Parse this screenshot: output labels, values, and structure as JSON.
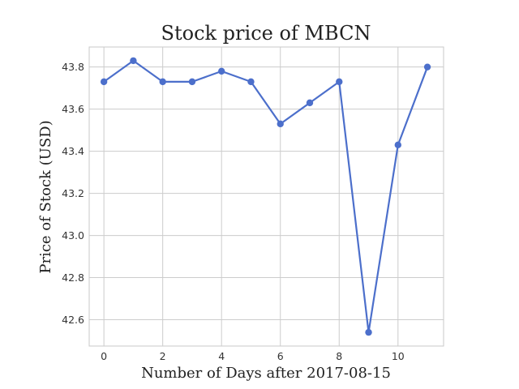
{
  "chart_data": {
    "type": "line",
    "title": "Stock price of MBCN",
    "xlabel": "Number of Days after 2017-08-15",
    "ylabel": "Price of Stock (USD)",
    "x": [
      0,
      1,
      2,
      3,
      4,
      5,
      6,
      7,
      8,
      9,
      10,
      11
    ],
    "series": [
      {
        "values": [
          43.73,
          43.83,
          43.73,
          43.73,
          43.78,
          43.73,
          43.53,
          43.63,
          43.73,
          42.54,
          43.43,
          43.8
        ]
      }
    ],
    "xlim": [
      -0.5,
      11.55
    ],
    "ylim": [
      42.475,
      43.895
    ],
    "xticks": [
      0,
      2,
      4,
      6,
      8,
      10
    ],
    "xtick_labels": [
      "0",
      "2",
      "4",
      "6",
      "8",
      "10"
    ],
    "yticks": [
      42.6,
      42.8,
      43.0,
      43.2,
      43.4,
      43.6,
      43.8
    ],
    "ytick_labels": [
      "42.6",
      "42.8",
      "43.0",
      "43.2",
      "43.4",
      "43.6",
      "43.8"
    ],
    "grid": true,
    "line_color": "#4c6fcb"
  }
}
